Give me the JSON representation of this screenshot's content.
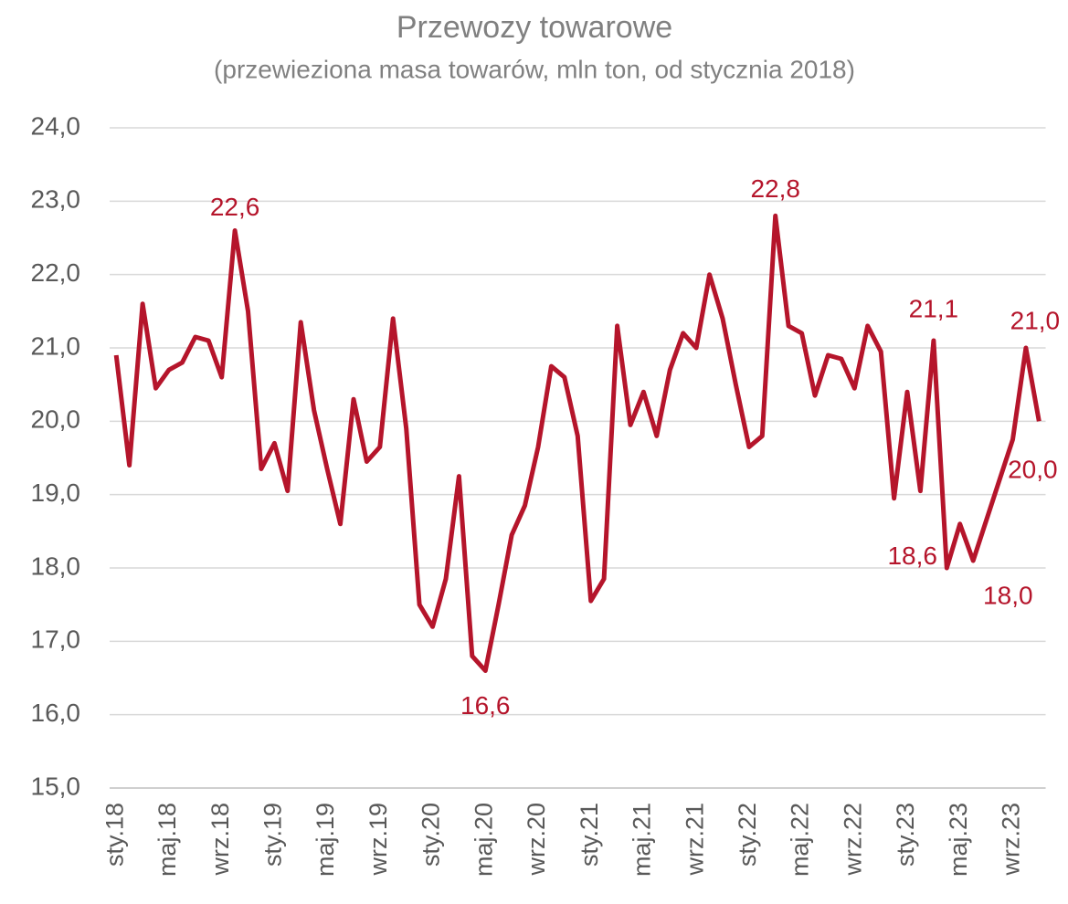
{
  "chart_data": {
    "type": "line",
    "title": "Przewozy towarowe",
    "subtitle": "(przewieziona masa towarów, mln ton, od stycznia 2018)",
    "categories": [
      "sty.18",
      null,
      null,
      null,
      "maj.18",
      null,
      null,
      null,
      "wrz.18",
      null,
      null,
      null,
      "sty.19",
      null,
      null,
      null,
      "maj.19",
      null,
      null,
      null,
      "wrz.19",
      null,
      null,
      null,
      "sty.20",
      null,
      null,
      null,
      "maj.20",
      null,
      null,
      null,
      "wrz.20",
      null,
      null,
      null,
      "sty.21",
      null,
      null,
      null,
      "maj.21",
      null,
      null,
      null,
      "wrz.21",
      null,
      null,
      null,
      "sty.22",
      null,
      null,
      null,
      "maj.22",
      null,
      null,
      null,
      "wrz.22",
      null,
      null,
      null,
      "sty.23",
      null,
      null,
      null,
      "maj.23",
      null,
      null,
      null,
      "wrz.23",
      null,
      null
    ],
    "series": [
      {
        "name": "Przewozy towarowe",
        "color": "#b5152b",
        "values": [
          20.9,
          19.4,
          21.6,
          20.45,
          20.7,
          20.8,
          21.15,
          21.1,
          20.6,
          22.6,
          21.5,
          19.35,
          19.7,
          19.05,
          21.35,
          20.15,
          19.35,
          18.6,
          20.3,
          19.45,
          19.65,
          21.4,
          19.9,
          17.5,
          17.2,
          17.85,
          19.25,
          16.8,
          16.6,
          17.5,
          18.45,
          18.85,
          19.65,
          20.75,
          20.6,
          19.8,
          17.55,
          17.85,
          21.3,
          19.95,
          20.4,
          19.8,
          20.7,
          21.2,
          21.0,
          22.0,
          21.4,
          20.5,
          19.65,
          19.8,
          22.8,
          21.3,
          21.2,
          20.35,
          20.9,
          20.85,
          20.45,
          21.3,
          20.95,
          18.95,
          20.4,
          19.05,
          21.1,
          18.0,
          18.6,
          18.1,
          18.65,
          19.2,
          19.75,
          21.0,
          20.0
        ],
        "value_labels": [
          null,
          null,
          null,
          null,
          null,
          null,
          null,
          null,
          null,
          "22,6",
          null,
          null,
          null,
          null,
          null,
          null,
          null,
          null,
          null,
          null,
          null,
          null,
          null,
          null,
          null,
          null,
          null,
          null,
          "16,6",
          null,
          null,
          null,
          null,
          null,
          null,
          null,
          null,
          null,
          null,
          null,
          null,
          null,
          null,
          null,
          null,
          null,
          null,
          null,
          null,
          null,
          "22,8",
          null,
          null,
          null,
          null,
          null,
          null,
          null,
          null,
          null,
          null,
          null,
          "21,1",
          "18,0",
          "18,6",
          null,
          null,
          null,
          null,
          "21,0",
          "20,0"
        ]
      }
    ],
    "ylim": [
      15,
      24
    ],
    "yticks": [
      {
        "value": 15,
        "label": "15,0"
      },
      {
        "value": 16,
        "label": "16,0"
      },
      {
        "value": 17,
        "label": "17,0"
      },
      {
        "value": 18,
        "label": "18,0"
      },
      {
        "value": 19,
        "label": "19,0"
      },
      {
        "value": 20,
        "label": "20,0"
      },
      {
        "value": 21,
        "label": "21,0"
      },
      {
        "value": 22,
        "label": "22,0"
      },
      {
        "value": 23,
        "label": "23,0"
      },
      {
        "value": 24,
        "label": "24,0"
      }
    ],
    "grid": true
  }
}
